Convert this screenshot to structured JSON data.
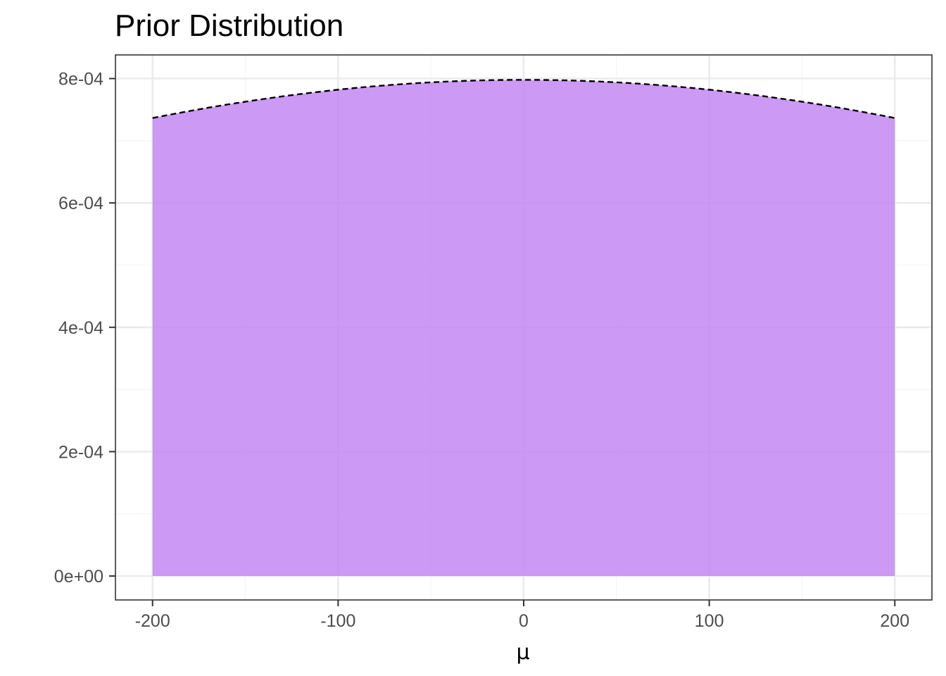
{
  "chart_data": {
    "type": "area",
    "title": "Prior Distribution",
    "xlabel": "μ",
    "ylabel": "",
    "xlim": [
      -220,
      220
    ],
    "ylim": [
      -3.85e-05,
      0.000838
    ],
    "x_ticks": [
      -200,
      -100,
      0,
      100,
      200
    ],
    "x_tick_labels": [
      "-200",
      "-100",
      "0",
      "100",
      "200"
    ],
    "y_ticks": [
      0,
      0.0002,
      0.0004,
      0.0006,
      0.0008
    ],
    "y_tick_labels": [
      "0e+00",
      "2e-04",
      "4e-04",
      "6e-04",
      "8e-04"
    ],
    "grid": true,
    "legend": "none",
    "series": [
      {
        "distribution": "normal",
        "mean": 0,
        "sd": 500,
        "x": [
          -200,
          -175,
          -150,
          -125,
          -100,
          -75,
          -50,
          -25,
          0,
          25,
          50,
          75,
          100,
          125,
          150,
          175,
          200
        ],
        "values": [
          0.0007365,
          0.0007519,
          0.0007654,
          0.000777,
          0.0007821,
          0.0007889,
          0.0007939,
          0.0007969,
          0.0007979,
          0.0007969,
          0.0007939,
          0.0007889,
          0.0007821,
          0.000777,
          0.0007654,
          0.0007519,
          0.0007365
        ]
      }
    ],
    "colors": {
      "fill": "#c387f2",
      "line": "#000000",
      "panel_border": "#333333",
      "grid_major": "#ebebeb",
      "grid_minor": "#f4f4f4"
    }
  }
}
